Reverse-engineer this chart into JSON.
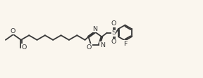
{
  "bg_color": "#faf6ee",
  "line_color": "#383838",
  "lw": 1.3,
  "fs": 6.8,
  "figsize": [
    2.88,
    1.11
  ],
  "dpi": 100,
  "xlim": [
    0,
    11.0
  ],
  "ylim": [
    0,
    4.2
  ]
}
